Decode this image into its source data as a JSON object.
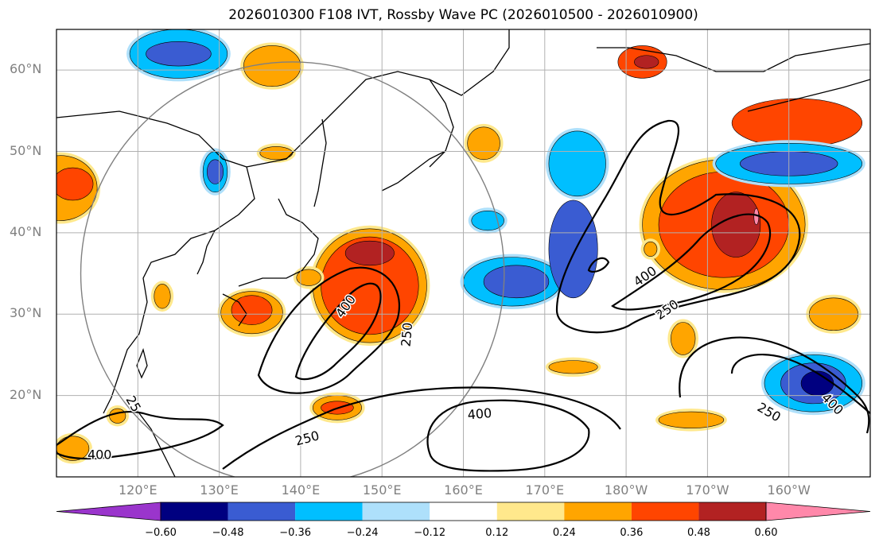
{
  "title": "2026010300 F108 IVT, Rossby Wave PC (2026010500 - 2026010900)",
  "map": {
    "projection": "equirectangular",
    "lon_range": [
      110,
      210
    ],
    "lat_range": [
      10,
      65
    ],
    "gridlines": true,
    "lat_ticks": [
      {
        "value": 20,
        "label": "20°N"
      },
      {
        "value": 30,
        "label": "30°N"
      },
      {
        "value": 40,
        "label": "40°N"
      },
      {
        "value": 50,
        "label": "50°N"
      },
      {
        "value": 60,
        "label": "60°N"
      }
    ],
    "lon_ticks": [
      {
        "value": 120,
        "label": "120°E"
      },
      {
        "value": 130,
        "label": "130°E"
      },
      {
        "value": 140,
        "label": "140°E"
      },
      {
        "value": 150,
        "label": "150°E"
      },
      {
        "value": 160,
        "label": "160°E"
      },
      {
        "value": 170,
        "label": "170°E"
      },
      {
        "value": 180,
        "label": "180°W"
      },
      {
        "value": 190,
        "label": "170°W"
      },
      {
        "value": 200,
        "label": "160°W"
      }
    ],
    "reference_circle": {
      "center_lon": 139,
      "center_lat": 35,
      "radius_deg": 26,
      "color": "#808080"
    },
    "ivt_contour_labels": [
      {
        "text": "400",
        "lon": 145.5,
        "lat": 31.0,
        "rot": -55
      },
      {
        "text": "250",
        "lon": 153.0,
        "lat": 27.5,
        "rot": -85
      },
      {
        "text": "25",
        "lon": 119.5,
        "lat": 19.0,
        "rot": 60
      },
      {
        "text": "400",
        "lon": 115.3,
        "lat": 12.8,
        "rot": 0
      },
      {
        "text": "250",
        "lon": 140.8,
        "lat": 14.8,
        "rot": -15
      },
      {
        "text": "400",
        "lon": 162.0,
        "lat": 17.8,
        "rot": -5
      },
      {
        "text": "400",
        "lon": 182.3,
        "lat": 34.7,
        "rot": -35
      },
      {
        "text": "250",
        "lon": 185.0,
        "lat": 30.6,
        "rot": -35
      },
      {
        "text": "250",
        "lon": 197.6,
        "lat": 18.0,
        "rot": 30
      },
      {
        "text": "400",
        "lon": 205.4,
        "lat": 19.0,
        "rot": 45
      }
    ],
    "pc_shading": [
      {
        "lon": 110.5,
        "lat": 45.5,
        "rx": 4.5,
        "ry": 4,
        "level": 0.24
      },
      {
        "lon": 112.0,
        "lat": 46.0,
        "rx": 2.5,
        "ry": 2,
        "level": 0.36
      },
      {
        "lon": 125.0,
        "lat": 62.0,
        "rx": 6,
        "ry": 3,
        "level": -0.24
      },
      {
        "lon": 125.0,
        "lat": 62.0,
        "rx": 4,
        "ry": 1.5,
        "level": -0.36
      },
      {
        "lon": 136.5,
        "lat": 60.5,
        "rx": 3.5,
        "ry": 2.5,
        "level": 0.24
      },
      {
        "lon": 129.5,
        "lat": 47.5,
        "rx": 1.5,
        "ry": 2.5,
        "level": -0.24
      },
      {
        "lon": 129.5,
        "lat": 47.5,
        "rx": 1,
        "ry": 1.5,
        "level": -0.36
      },
      {
        "lon": 134.0,
        "lat": 30.2,
        "rx": 3.8,
        "ry": 2.6,
        "level": 0.24
      },
      {
        "lon": 134.0,
        "lat": 30.5,
        "rx": 2.5,
        "ry": 1.8,
        "level": 0.36
      },
      {
        "lon": 148.5,
        "lat": 33.5,
        "rx": 7,
        "ry": 7,
        "level": 0.24
      },
      {
        "lon": 148.5,
        "lat": 33.5,
        "rx": 6,
        "ry": 6,
        "level": 0.36
      },
      {
        "lon": 148.5,
        "lat": 37.5,
        "rx": 3,
        "ry": 1.5,
        "level": 0.48
      },
      {
        "lon": 144.5,
        "lat": 18.5,
        "rx": 3,
        "ry": 1.5,
        "level": 0.24
      },
      {
        "lon": 144.5,
        "lat": 18.5,
        "rx": 2,
        "ry": 0.8,
        "level": 0.36
      },
      {
        "lon": 166.0,
        "lat": 34.0,
        "rx": 6,
        "ry": 3,
        "level": -0.24
      },
      {
        "lon": 166.5,
        "lat": 34.0,
        "rx": 4,
        "ry": 2,
        "level": -0.36
      },
      {
        "lon": 174.0,
        "lat": 48.5,
        "rx": 3.5,
        "ry": 4,
        "level": -0.24
      },
      {
        "lon": 173.5,
        "lat": 38.0,
        "rx": 3,
        "ry": 6,
        "level": -0.36
      },
      {
        "lon": 163.0,
        "lat": 41.5,
        "rx": 2,
        "ry": 1.2,
        "level": -0.24
      },
      {
        "lon": 162.5,
        "lat": 51.0,
        "rx": 2,
        "ry": 2,
        "level": 0.24
      },
      {
        "lon": 182.0,
        "lat": 61.0,
        "rx": 3,
        "ry": 2,
        "level": 0.36
      },
      {
        "lon": 182.5,
        "lat": 61.0,
        "rx": 1.5,
        "ry": 0.8,
        "level": 0.48
      },
      {
        "lon": 192.0,
        "lat": 41.0,
        "rx": 10,
        "ry": 8,
        "level": 0.24
      },
      {
        "lon": 192.0,
        "lat": 41.0,
        "rx": 8,
        "ry": 6.5,
        "level": 0.36
      },
      {
        "lon": 193.5,
        "lat": 41.0,
        "rx": 3,
        "ry": 4,
        "level": 0.48
      },
      {
        "lon": 196.0,
        "lat": 42.0,
        "rx": 0.3,
        "ry": 1,
        "level": 0.6
      },
      {
        "lon": 201.0,
        "lat": 53.5,
        "rx": 8,
        "ry": 3,
        "level": 0.36
      },
      {
        "lon": 200.0,
        "lat": 48.5,
        "rx": 9,
        "ry": 2.5,
        "level": -0.24
      },
      {
        "lon": 200.0,
        "lat": 48.5,
        "rx": 6,
        "ry": 1.5,
        "level": -0.36
      },
      {
        "lon": 203.0,
        "lat": 21.5,
        "rx": 6,
        "ry": 3.5,
        "level": -0.24
      },
      {
        "lon": 203.0,
        "lat": 21.5,
        "rx": 4,
        "ry": 2.5,
        "level": -0.36
      },
      {
        "lon": 203.5,
        "lat": 21.5,
        "rx": 2,
        "ry": 1.5,
        "level": -0.48
      },
      {
        "lon": 205.5,
        "lat": 30.0,
        "rx": 3,
        "ry": 2,
        "level": 0.24
      },
      {
        "lon": 173.5,
        "lat": 23.5,
        "rx": 3,
        "ry": 0.8,
        "level": 0.24
      },
      {
        "lon": 187.0,
        "lat": 27.0,
        "rx": 1.5,
        "ry": 2,
        "level": 0.24
      },
      {
        "lon": 137.0,
        "lat": 49.8,
        "rx": 2,
        "ry": 0.8,
        "level": 0.24
      },
      {
        "lon": 123.0,
        "lat": 32.2,
        "rx": 1,
        "ry": 1.5,
        "level": 0.24
      },
      {
        "lon": 117.5,
        "lat": 17.5,
        "rx": 1,
        "ry": 0.9,
        "level": 0.24
      },
      {
        "lon": 112.0,
        "lat": 13.5,
        "rx": 2,
        "ry": 1.5,
        "level": 0.24
      },
      {
        "lon": 141.0,
        "lat": 34.5,
        "rx": 1.5,
        "ry": 1,
        "level": 0.24
      },
      {
        "lon": 188.0,
        "lat": 17.0,
        "rx": 4,
        "ry": 1,
        "level": 0.24
      },
      {
        "lon": 183.0,
        "lat": 38.0,
        "rx": 0.8,
        "ry": 0.9,
        "level": 0.24
      }
    ],
    "colorbar": {
      "colors": [
        "#9a35cc",
        "#000080",
        "#3a5cd2",
        "#00bfff",
        "#aee0fb",
        "#ffffff",
        "#ffe88c",
        "#ffa500",
        "#ff4500",
        "#b22222",
        "#ff88aa"
      ],
      "labels": [
        "−0.60",
        "−0.48",
        "−0.36",
        "−0.24",
        "−0.12",
        "0.12",
        "0.24",
        "0.36",
        "0.48",
        "0.60"
      ]
    }
  }
}
